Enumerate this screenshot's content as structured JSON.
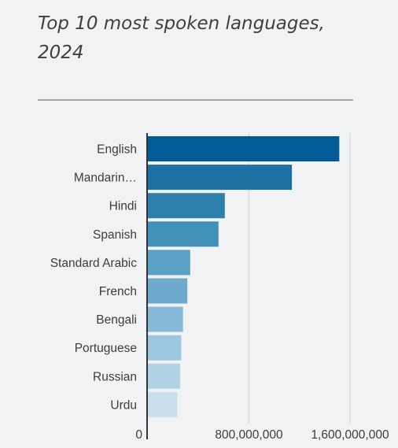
{
  "chart_data": {
    "type": "bar",
    "orientation": "horizontal",
    "title": "Top 10 most spoken languages, 2024",
    "categories": [
      "English",
      "Mandarin…",
      "Hindi",
      "Spanish",
      "Standard Arabic",
      "French",
      "Bengali",
      "Portuguese",
      "Russian",
      "Urdu"
    ],
    "values": [
      1515000000,
      1140000000,
      609000000,
      559000000,
      335000000,
      312000000,
      278000000,
      264000000,
      255000000,
      232000000
    ],
    "xlim": [
      0,
      1600000000
    ],
    "x_ticks": [
      {
        "value": 0,
        "label": "0"
      },
      {
        "value": 800000000,
        "label": "800,000,000"
      },
      {
        "value": 1600000000,
        "label": "1,600,000,000"
      }
    ],
    "colors": [
      "#005b96",
      "#1e72a3",
      "#2f7fad",
      "#4390b9",
      "#5b9fc4",
      "#6eaace",
      "#87b9d8",
      "#9cc6de",
      "#b2d3e4",
      "#c9e0ec"
    ],
    "grid": true
  }
}
